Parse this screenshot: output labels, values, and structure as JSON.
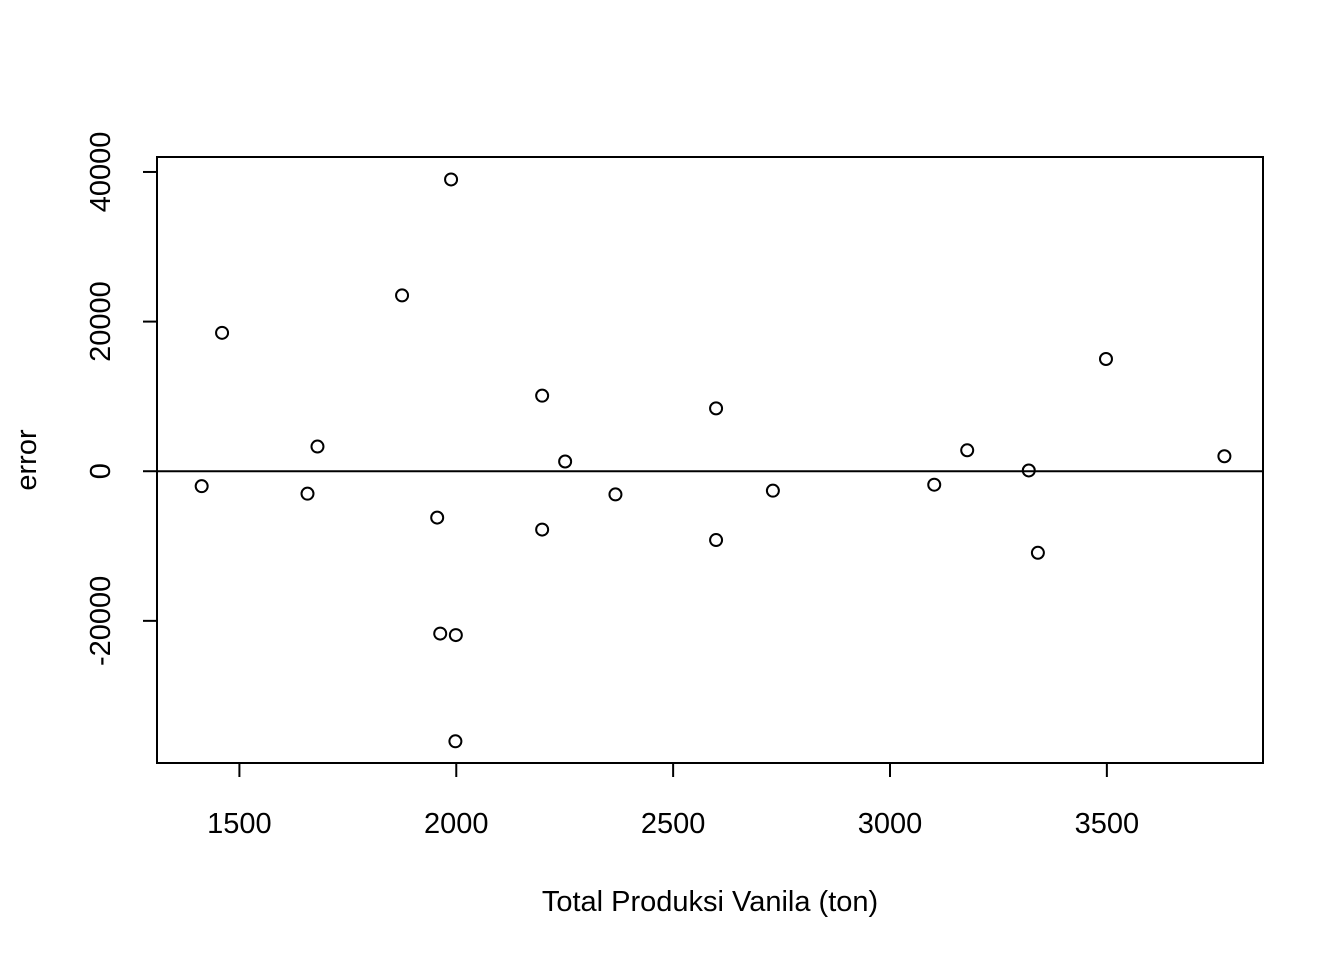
{
  "chart_data": {
    "type": "scatter",
    "title": "",
    "xlabel": "Total Produksi Vanila (ton)",
    "ylabel": "error",
    "xlim": [
      1310,
      3860
    ],
    "ylim": [
      -39000,
      42000
    ],
    "x_ticks": [
      1500,
      2000,
      2500,
      3000,
      3500
    ],
    "x_tick_labels": [
      "1500",
      "2000",
      "2500",
      "3000",
      "3500"
    ],
    "y_ticks": [
      -20000,
      0,
      20000,
      40000
    ],
    "y_tick_labels": [
      "-20000",
      "0",
      "20000",
      "40000"
    ],
    "reference_line_y": 0,
    "grid": false,
    "marker": "open-circle",
    "points": [
      {
        "x": 1413,
        "y": -2000
      },
      {
        "x": 1460,
        "y": 18500
      },
      {
        "x": 1657,
        "y": -3000
      },
      {
        "x": 1680,
        "y": 3300
      },
      {
        "x": 1875,
        "y": 23500
      },
      {
        "x": 1956,
        "y": -6200
      },
      {
        "x": 1963,
        "y": -21700
      },
      {
        "x": 1988,
        "y": 39000
      },
      {
        "x": 1998,
        "y": -36100
      },
      {
        "x": 1999,
        "y": -21900
      },
      {
        "x": 2198,
        "y": 10100
      },
      {
        "x": 2198,
        "y": -7800
      },
      {
        "x": 2251,
        "y": 1300
      },
      {
        "x": 2367,
        "y": -3100
      },
      {
        "x": 2599,
        "y": 8400
      },
      {
        "x": 2599,
        "y": -9200
      },
      {
        "x": 2730,
        "y": -2600
      },
      {
        "x": 3102,
        "y": -1800
      },
      {
        "x": 3178,
        "y": 2800
      },
      {
        "x": 3320,
        "y": 100
      },
      {
        "x": 3341,
        "y": -10900
      },
      {
        "x": 3498,
        "y": 15000
      },
      {
        "x": 3771,
        "y": 2000
      }
    ]
  }
}
